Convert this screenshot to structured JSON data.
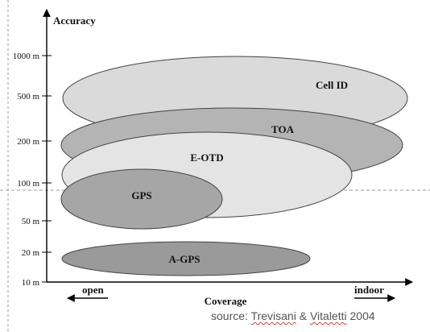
{
  "axes": {
    "y_label": "Accuracy",
    "x_label": "Coverage",
    "y_ticks": [
      "1000 m",
      "500 m",
      "200 m",
      "100 m",
      "50 m",
      "20 m",
      "10 m"
    ],
    "x_left_label": "open",
    "x_right_label": "indoor"
  },
  "regions": [
    {
      "label": "Cell ID",
      "fill": "#dadada"
    },
    {
      "label": "TOA",
      "fill": "#b4b4b4"
    },
    {
      "label": "E-OTD",
      "fill": "#e4e4e4"
    },
    {
      "label": "GPS",
      "fill": "#a6a6a6"
    },
    {
      "label": "A-GPS",
      "fill": "#9a9a9a"
    }
  ],
  "source": {
    "prefix": "source: ",
    "author1": "Trevisani",
    "amp": " & ",
    "author2": "Vitaletti",
    "year": " 2004"
  }
}
